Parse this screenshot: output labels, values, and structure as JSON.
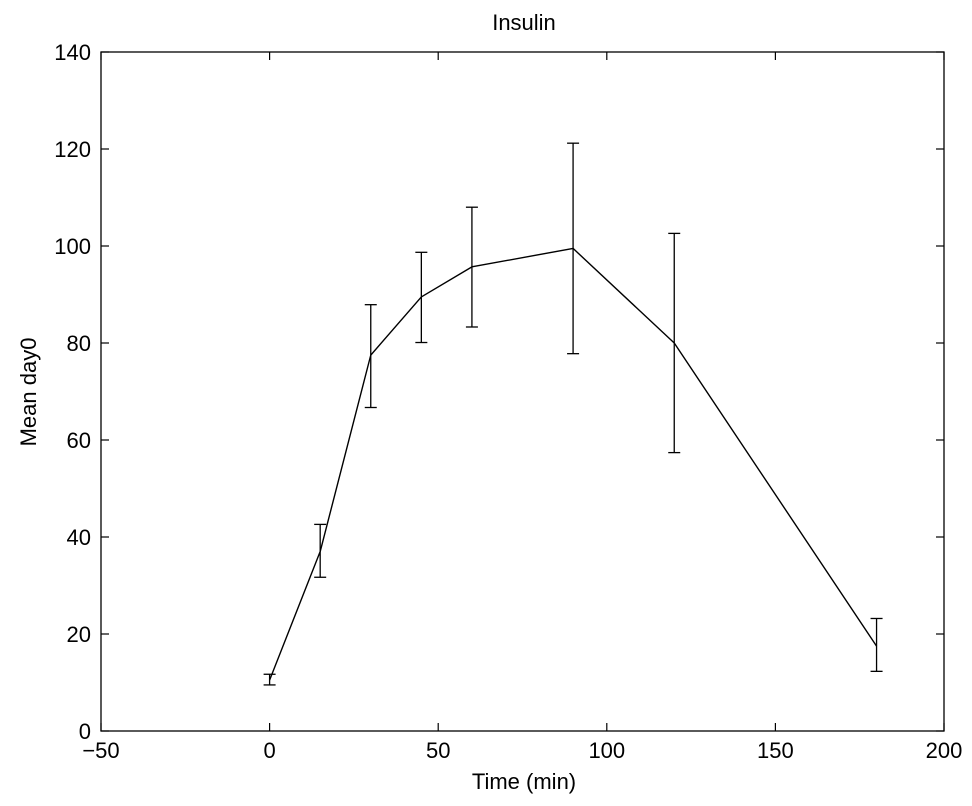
{
  "chart_data": {
    "type": "line",
    "title": "Insulin",
    "xlabel": "Time (min)",
    "ylabel": "Mean day0",
    "xlim": [
      -50,
      200
    ],
    "ylim": [
      0,
      140
    ],
    "xticks": [
      -50,
      0,
      50,
      100,
      150,
      200
    ],
    "yticks": [
      0,
      20,
      40,
      60,
      80,
      100,
      120,
      140
    ],
    "xtick_labels": [
      "−50",
      "0",
      "50",
      "100",
      "150",
      "200"
    ],
    "ytick_labels": [
      "0",
      "20",
      "40",
      "60",
      "80",
      "100",
      "120",
      "140"
    ],
    "grid": false,
    "legend": "none",
    "line_color": "#000000",
    "series": [
      {
        "x": [
          0,
          15,
          30,
          45,
          60,
          90,
          120,
          180
        ],
        "y": [
          10.5,
          37,
          77.5,
          89.5,
          95.7,
          99.5,
          80,
          17.5
        ],
        "error_lower": [
          9.5,
          31.7,
          66.7,
          80.1,
          83.3,
          77.8,
          57.4,
          12.3
        ],
        "error_upper": [
          11.7,
          42.6,
          87.9,
          98.7,
          108,
          121.2,
          102.6,
          23.2
        ]
      }
    ]
  }
}
